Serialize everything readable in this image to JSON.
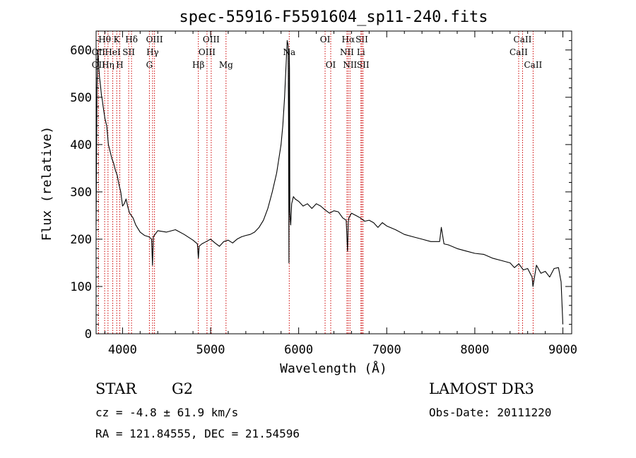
{
  "chart_data": {
    "type": "line",
    "title": "spec-55916-F5591604_sp11-240.fits",
    "xlabel": "Wavelength (Å)",
    "ylabel": "Flux (relative)",
    "xlim": [
      3700,
      9100
    ],
    "ylim": [
      0,
      640
    ],
    "xticks": [
      4000,
      5000,
      6000,
      7000,
      8000,
      9000
    ],
    "yticks": [
      0,
      100,
      200,
      300,
      400,
      500,
      600
    ],
    "series": [
      {
        "name": "flux",
        "x": [
          3700,
          3710,
          3720,
          3730,
          3740,
          3750,
          3760,
          3770,
          3780,
          3800,
          3820,
          3840,
          3860,
          3880,
          3900,
          3920,
          3940,
          3960,
          3980,
          4000,
          4020,
          4040,
          4060,
          4080,
          4100,
          4120,
          4150,
          4200,
          4250,
          4300,
          4330,
          4340,
          4350,
          4400,
          4500,
          4600,
          4700,
          4800,
          4850,
          4861,
          4870,
          4900,
          4950,
          5000,
          5050,
          5100,
          5150,
          5200,
          5250,
          5300,
          5350,
          5400,
          5450,
          5500,
          5550,
          5600,
          5650,
          5700,
          5750,
          5800,
          5820,
          5840,
          5860,
          5870,
          5880,
          5885,
          5890,
          5893,
          5896,
          5900,
          5905,
          5910,
          5920,
          5940,
          5960,
          6000,
          6050,
          6100,
          6150,
          6200,
          6250,
          6300,
          6350,
          6400,
          6450,
          6500,
          6540,
          6555,
          6563,
          6570,
          6600,
          6650,
          6700,
          6750,
          6800,
          6850,
          6900,
          6950,
          7000,
          7100,
          7200,
          7300,
          7400,
          7500,
          7600,
          7620,
          7650,
          7700,
          7800,
          7900,
          8000,
          8100,
          8200,
          8300,
          8400,
          8450,
          8500,
          8550,
          8600,
          8650,
          8660,
          8700,
          8750,
          8800,
          8850,
          8900,
          8950,
          8980,
          9000
        ],
        "y": [
          230,
          520,
          600,
          565,
          540,
          525,
          505,
          495,
          480,
          455,
          440,
          400,
          385,
          370,
          360,
          345,
          335,
          315,
          300,
          270,
          275,
          285,
          268,
          255,
          250,
          245,
          230,
          215,
          208,
          205,
          200,
          145,
          205,
          218,
          215,
          220,
          210,
          198,
          190,
          160,
          185,
          190,
          195,
          200,
          192,
          185,
          195,
          198,
          192,
          200,
          205,
          208,
          210,
          215,
          225,
          240,
          265,
          300,
          340,
          400,
          440,
          500,
          580,
          620,
          610,
          450,
          150,
          600,
          560,
          260,
          240,
          230,
          275,
          290,
          285,
          280,
          270,
          275,
          265,
          275,
          270,
          262,
          255,
          260,
          258,
          245,
          240,
          175,
          235,
          245,
          255,
          250,
          245,
          238,
          240,
          235,
          225,
          235,
          228,
          220,
          210,
          205,
          200,
          195,
          195,
          225,
          190,
          188,
          180,
          175,
          170,
          168,
          160,
          155,
          150,
          140,
          148,
          135,
          138,
          120,
          100,
          145,
          128,
          132,
          120,
          138,
          140,
          110,
          20
        ]
      }
    ],
    "lines": [
      {
        "name": "Hθ",
        "x": 3797,
        "row": 1
      },
      {
        "name": "OII",
        "x": 3727,
        "row": 2
      },
      {
        "name": "OII",
        "x": 3727,
        "row": 3
      },
      {
        "name": "K",
        "x": 3934,
        "row": 1
      },
      {
        "name": "HeI",
        "x": 3889,
        "row": 2
      },
      {
        "name": "Hη",
        "x": 3835,
        "row": 3
      },
      {
        "name": "Hδ",
        "x": 4102,
        "row": 1
      },
      {
        "name": "SII",
        "x": 4070,
        "row": 2
      },
      {
        "name": "H",
        "x": 3969,
        "row": 3
      },
      {
        "name": "OIII",
        "x": 4363,
        "row": 1
      },
      {
        "name": "Hγ",
        "x": 4341,
        "row": 2
      },
      {
        "name": "G",
        "x": 4305,
        "row": 3
      },
      {
        "name": "OIII",
        "x": 5007,
        "row": 1
      },
      {
        "name": "OIII",
        "x": 4959,
        "row": 2
      },
      {
        "name": "Hβ",
        "x": 4861,
        "row": 3
      },
      {
        "name": "Mg",
        "x": 5175,
        "row": 3
      },
      {
        "name": "Na",
        "x": 5893,
        "row": 2
      },
      {
        "name": "OI",
        "x": 6300,
        "row": 1
      },
      {
        "name": "OI",
        "x": 6364,
        "row": 3
      },
      {
        "name": "Hα",
        "x": 6563,
        "row": 1
      },
      {
        "name": "NII",
        "x": 6548,
        "row": 2
      },
      {
        "name": "NII",
        "x": 6583,
        "row": 3
      },
      {
        "name": "SII",
        "x": 6717,
        "row": 1
      },
      {
        "name": "Li",
        "x": 6707,
        "row": 2
      },
      {
        "name": "SII",
        "x": 6731,
        "row": 3
      },
      {
        "name": "CaII",
        "x": 8542,
        "row": 1
      },
      {
        "name": "CaII",
        "x": 8498,
        "row": 2
      },
      {
        "name": "CaII",
        "x": 8662,
        "row": 3
      }
    ],
    "line_color": "#cc0000"
  },
  "info": {
    "object_class": "STAR",
    "subclass": "G2",
    "survey": "LAMOST DR3",
    "cz": "cz = -4.8 ± 61.9 km/s",
    "obs_date": "Obs-Date: 20111220",
    "coords": "RA = 121.84555, DEC =  21.54596"
  }
}
